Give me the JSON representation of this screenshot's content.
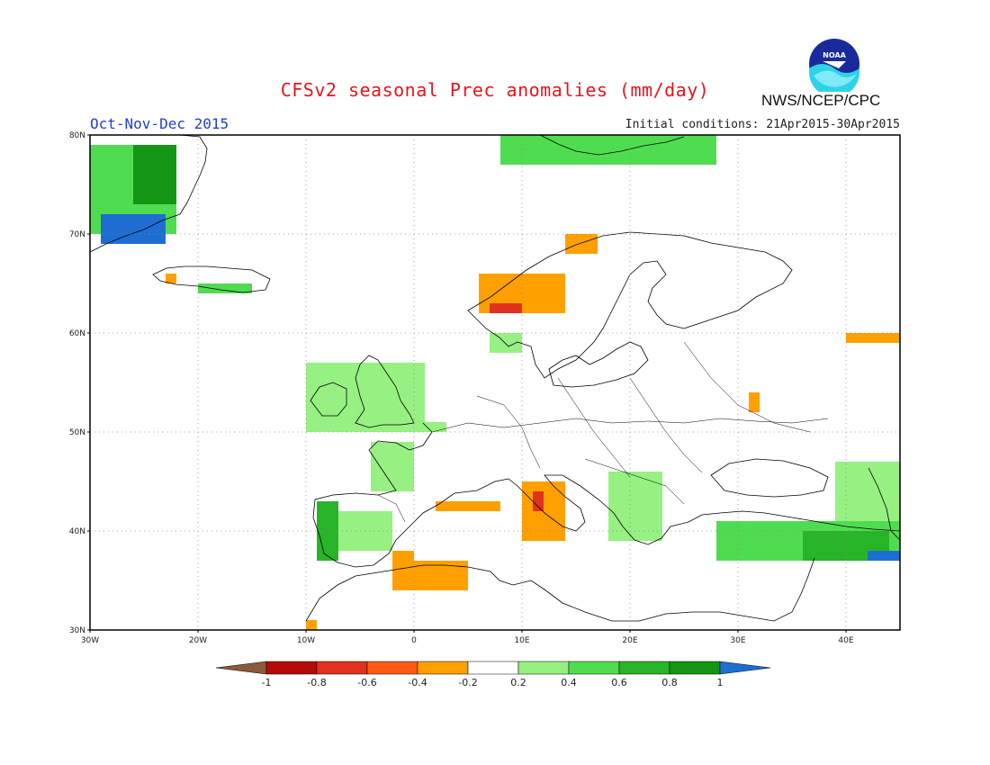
{
  "title": "CFSv2 seasonal Prec anomalies (mm/day)",
  "period": "Oct-Nov-Dec 2015",
  "initial_conditions": "Initial conditions: 21Apr2015-30Apr2015",
  "agency": "NWS/NCEP/CPC",
  "logo_text": "NOAA",
  "colors": {
    "title": "#e8141b",
    "period": "#1f3fd6",
    "frame": "#000000",
    "gridline": "#888888",
    "coast": "#000000"
  },
  "map": {
    "lon_range": [
      -30,
      45
    ],
    "lat_range": [
      30,
      80
    ],
    "lat_labels": [
      "30N",
      "40N",
      "50N",
      "60N",
      "70N",
      "80N"
    ],
    "lat_values": [
      30,
      40,
      50,
      60,
      70,
      80
    ],
    "lon_labels": [
      "30W",
      "20W",
      "10W",
      "0",
      "10E",
      "20E",
      "30E",
      "40E"
    ],
    "lon_values": [
      -30,
      -20,
      -10,
      0,
      10,
      20,
      30,
      40
    ]
  },
  "colorbar": {
    "levels": [
      "-1",
      "-0.8",
      "-0.6",
      "-0.4",
      "-0.2",
      "0.2",
      "0.4",
      "0.6",
      "0.8",
      "1"
    ],
    "colors": [
      "#8b5a3c",
      "#b40a0a",
      "#e0321e",
      "#ff5a14",
      "#ffa000",
      "#ffffff",
      "#96f082",
      "#50dc50",
      "#28b428",
      "#149614",
      "#1e6ed2"
    ]
  },
  "anomaly_regions": [
    {
      "name": "greenland-east",
      "value": 0.4,
      "lon": [
        -30,
        -22
      ],
      "lat": [
        70,
        79
      ]
    },
    {
      "name": "greenland-coast",
      "value": 0.8,
      "lon": [
        -26,
        -22
      ],
      "lat": [
        73,
        79
      ]
    },
    {
      "name": "greenland-south",
      "value": 1.0,
      "lon": [
        -29,
        -23
      ],
      "lat": [
        69,
        72
      ]
    },
    {
      "name": "svalbard",
      "value": 0.4,
      "lon": [
        8,
        28
      ],
      "lat": [
        77,
        80
      ]
    },
    {
      "name": "iceland",
      "value": 0.4,
      "lon": [
        -20,
        -15
      ],
      "lat": [
        64,
        65
      ]
    },
    {
      "name": "iceland-nw",
      "value": -0.2,
      "lon": [
        -23,
        -22
      ],
      "lat": [
        65,
        66
      ]
    },
    {
      "name": "norway-coast",
      "value": -0.2,
      "lon": [
        6,
        14
      ],
      "lat": [
        62,
        66
      ]
    },
    {
      "name": "norway-coast-strong",
      "value": -0.6,
      "lon": [
        7,
        10
      ],
      "lat": [
        62,
        63
      ]
    },
    {
      "name": "norway-north",
      "value": -0.2,
      "lon": [
        14,
        17
      ],
      "lat": [
        68,
        70
      ]
    },
    {
      "name": "norway-south",
      "value": 0.2,
      "lon": [
        7,
        10
      ],
      "lat": [
        58,
        60
      ]
    },
    {
      "name": "british-isles",
      "value": 0.2,
      "lon": [
        -10,
        1
      ],
      "lat": [
        50,
        57
      ]
    },
    {
      "name": "benelux",
      "value": 0.2,
      "lon": [
        1,
        3
      ],
      "lat": [
        50,
        51
      ]
    },
    {
      "name": "france-west",
      "value": 0.2,
      "lon": [
        -4,
        0
      ],
      "lat": [
        44,
        49
      ]
    },
    {
      "name": "iberia-west",
      "value": 0.6,
      "lon": [
        -9,
        -7
      ],
      "lat": [
        37,
        43
      ]
    },
    {
      "name": "iberia",
      "value": 0.2,
      "lon": [
        -7,
        -2
      ],
      "lat": [
        38,
        42
      ]
    },
    {
      "name": "spain-east",
      "value": -0.2,
      "lon": [
        -2,
        0
      ],
      "lat": [
        36,
        38
      ]
    },
    {
      "name": "gulf-of-lion",
      "value": -0.2,
      "lon": [
        2,
        8
      ],
      "lat": [
        42,
        43
      ]
    },
    {
      "name": "italy",
      "value": -0.2,
      "lon": [
        10,
        14
      ],
      "lat": [
        39,
        45
      ]
    },
    {
      "name": "italy-strong",
      "value": -0.6,
      "lon": [
        11,
        12
      ],
      "lat": [
        42,
        44
      ]
    },
    {
      "name": "algeria",
      "value": -0.6,
      "lon": [
        -1,
        3
      ],
      "lat": [
        35,
        37
      ]
    },
    {
      "name": "north-africa",
      "value": -0.2,
      "lon": [
        -2,
        5
      ],
      "lat": [
        34,
        37
      ]
    },
    {
      "name": "morocco",
      "value": -0.2,
      "lon": [
        -10,
        -9
      ],
      "lat": [
        30,
        31
      ]
    },
    {
      "name": "balkans",
      "value": 0.2,
      "lon": [
        18,
        23
      ],
      "lat": [
        39,
        46
      ]
    },
    {
      "name": "turkey",
      "value": 0.4,
      "lon": [
        28,
        45
      ],
      "lat": [
        37,
        41
      ]
    },
    {
      "name": "turkey-east",
      "value": 0.6,
      "lon": [
        36,
        44
      ],
      "lat": [
        37,
        40
      ]
    },
    {
      "name": "caucasus",
      "value": 0.2,
      "lon": [
        39,
        45
      ],
      "lat": [
        41,
        47
      ]
    },
    {
      "name": "iraq",
      "value": 1.0,
      "lon": [
        42,
        45
      ],
      "lat": [
        37,
        38
      ]
    },
    {
      "name": "russia-east",
      "value": -0.2,
      "lon": [
        40,
        45
      ],
      "lat": [
        59,
        60
      ]
    },
    {
      "name": "belarus",
      "value": -0.2,
      "lon": [
        31,
        32
      ],
      "lat": [
        52,
        54
      ]
    }
  ]
}
